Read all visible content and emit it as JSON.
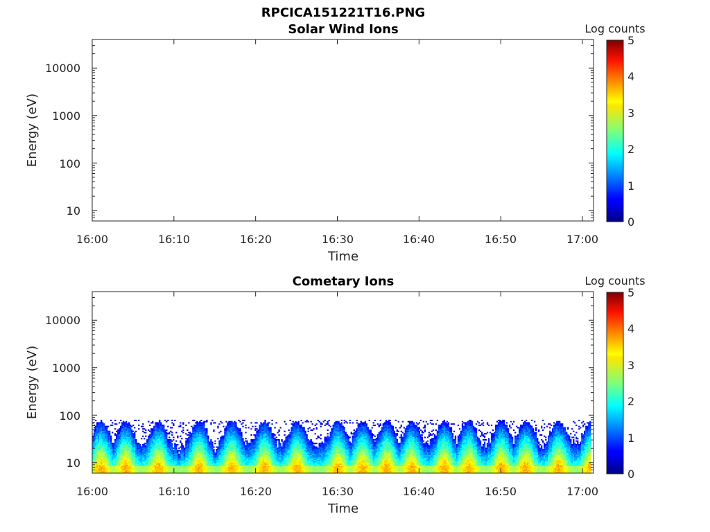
{
  "figure_title": "RPCICA151221T16.PNG",
  "chart_data": [
    {
      "type": "heatmap",
      "title": "Solar Wind Ions",
      "xlabel": "Time",
      "ylabel": "Energy (eV)",
      "y_scale": "log",
      "ylim": [
        6,
        40000
      ],
      "x_ticks": [
        "16:00",
        "16:10",
        "16:20",
        "16:30",
        "16:40",
        "16:50",
        "17:00"
      ],
      "y_ticks": [
        "10",
        "100",
        "1000",
        "10000"
      ],
      "colorbar": {
        "label": "Log counts",
        "ticks": [
          "0",
          "1",
          "2",
          "3",
          "4",
          "5"
        ],
        "range": [
          0,
          5
        ],
        "colormap": "jet"
      },
      "data_present": false
    },
    {
      "type": "heatmap",
      "title": "Cometary Ions",
      "xlabel": "Time",
      "ylabel": "Energy (eV)",
      "y_scale": "log",
      "ylim": [
        6,
        40000
      ],
      "x_ticks": [
        "16:00",
        "16:10",
        "16:20",
        "16:30",
        "16:40",
        "16:50",
        "17:00"
      ],
      "y_ticks": [
        "10",
        "100",
        "1000",
        "10000"
      ],
      "colorbar": {
        "label": "Log counts",
        "ticks": [
          "0",
          "1",
          "2",
          "3",
          "4",
          "5"
        ],
        "range": [
          0,
          5
        ],
        "colormap": "jet"
      },
      "data_present": true,
      "energy_upper_limit_eV": 80,
      "peak_log_counts_times_min": [
        1,
        4,
        8,
        13,
        17,
        21,
        25,
        30,
        33,
        36,
        39,
        43,
        46,
        50,
        53,
        57,
        61
      ]
    }
  ]
}
